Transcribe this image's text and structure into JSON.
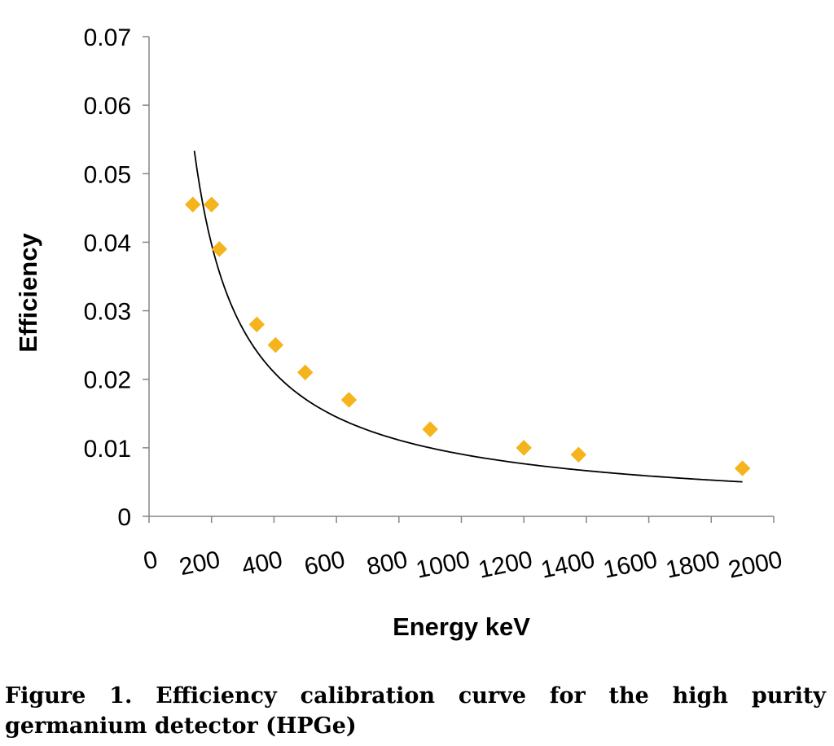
{
  "chart_data": {
    "type": "scatter",
    "title": "",
    "xlabel": "Energy keV",
    "ylabel": "Efficiency",
    "xlim": [
      0,
      2000
    ],
    "ylim": [
      0,
      0.07
    ],
    "x_ticks": [
      "0",
      "200",
      "400",
      "600",
      "800",
      "1000",
      "1200",
      "1400",
      "1600",
      "1800",
      "2000"
    ],
    "y_ticks": [
      "0",
      "0.01",
      "0.02",
      "0.03",
      "0.04",
      "0.05",
      "0.06",
      "0.07"
    ],
    "grid": false,
    "legend": "none",
    "marker": "diamond",
    "marker_color": "#F5B31C",
    "line_color": "#000000",
    "series": [
      {
        "points": [
          {
            "x": 140,
            "y": 0.0455
          },
          {
            "x": 200,
            "y": 0.0455
          },
          {
            "x": 225,
            "y": 0.039
          },
          {
            "x": 345,
            "y": 0.028
          },
          {
            "x": 405,
            "y": 0.025
          },
          {
            "x": 500,
            "y": 0.021
          },
          {
            "x": 640,
            "y": 0.017
          },
          {
            "x": 900,
            "y": 0.0127
          },
          {
            "x": 1200,
            "y": 0.01
          },
          {
            "x": 1375,
            "y": 0.009
          },
          {
            "x": 1900,
            "y": 0.007
          }
        ]
      }
    ],
    "trendline": {
      "type": "power",
      "x_range": [
        145,
        1900
      ],
      "a": 5.13,
      "b": -0.9175
    }
  },
  "caption": "Figure 1. Efficiency calibration curve for the high purity germanium detector (HPGe)"
}
